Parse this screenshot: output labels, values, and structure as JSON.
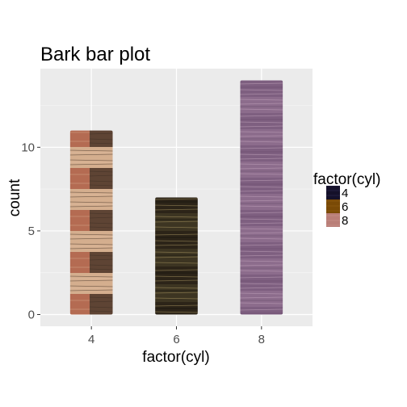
{
  "chart_data": {
    "type": "bar",
    "title": "Bark bar plot",
    "xlabel": "factor(cyl)",
    "ylabel": "count",
    "categories": [
      "4",
      "6",
      "8"
    ],
    "values": [
      11,
      7,
      14
    ],
    "ylim": [
      -0.7,
      14.7
    ],
    "yticks": [
      0,
      5,
      10
    ],
    "grid": true,
    "legend": {
      "title": "factor(cyl)",
      "position": "right",
      "entries": [
        "4",
        "6",
        "8"
      ]
    },
    "colors": {
      "4": "#B97560",
      "6": "#2A2116",
      "8": "#8A6A8B"
    },
    "legend_colors": {
      "4": "#14102A",
      "6": "#7A4A06",
      "8": "#B97E78"
    },
    "fill_texture": "bark"
  }
}
